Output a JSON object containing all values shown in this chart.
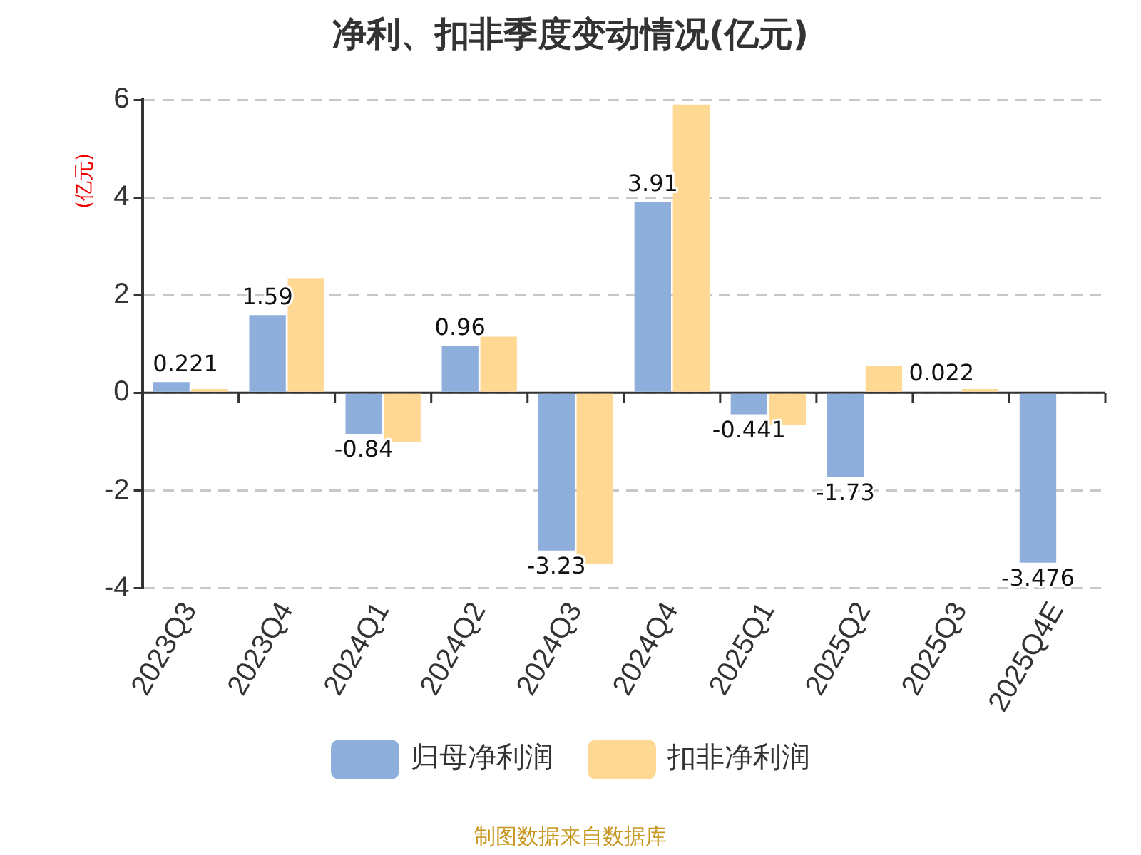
{
  "chart_data": {
    "type": "bar",
    "title": "净利、扣非季度变动情况(亿元)",
    "ylabel": "(亿元)",
    "categories": [
      "2023Q3",
      "2023Q4",
      "2024Q1",
      "2024Q2",
      "2024Q3",
      "2024Q4",
      "2025Q1",
      "2025Q2",
      "2025Q3",
      "2025Q4E"
    ],
    "series": [
      {
        "name": "归母净利润",
        "color": "#8eaedb",
        "values": [
          0.221,
          1.59,
          -0.84,
          0.96,
          -3.23,
          3.91,
          -0.441,
          -1.73,
          0.022,
          -3.476
        ],
        "value_labels": [
          "0.221",
          "1.59",
          "-0.84",
          "0.96",
          "-3.23",
          "3.91",
          "-0.441",
          "-1.73",
          "0.022",
          "-3.476"
        ]
      },
      {
        "name": "扣非净利润",
        "color": "#ffd894",
        "values": [
          0.08,
          2.35,
          -1.0,
          1.15,
          -3.5,
          5.9,
          -0.65,
          0.55,
          0.08,
          null
        ]
      }
    ],
    "ylim": [
      -4,
      6
    ],
    "yticks": [
      -4,
      -2,
      0,
      2,
      4,
      6
    ],
    "grid": "y",
    "legend": "bottom",
    "annotations": [
      "制图数据来自数据库"
    ]
  }
}
